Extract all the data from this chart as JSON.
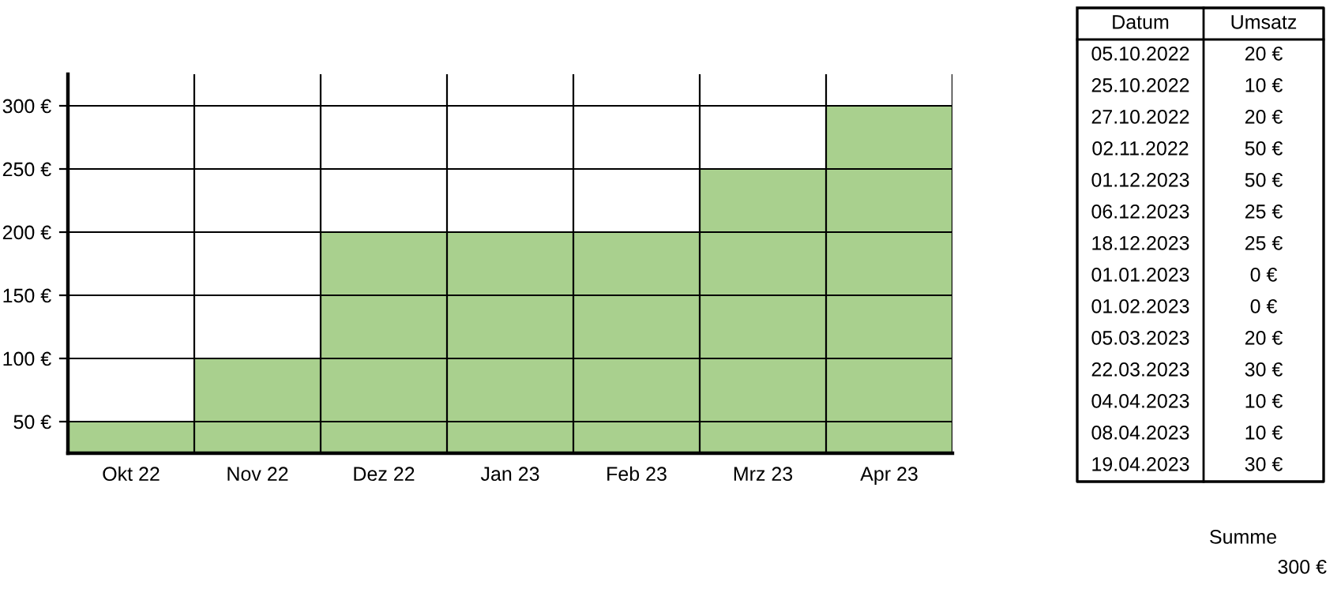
{
  "chart_data": [
    {
      "type": "bar",
      "categories": [
        "Okt 22",
        "Nov 22",
        "Dez 22",
        "Jan 23",
        "Feb 23",
        "Mrz 23",
        "Apr 23"
      ],
      "values": [
        50,
        100,
        200,
        200,
        200,
        250,
        300
      ],
      "color": "#a9d08e",
      "ylim": [
        25,
        325
      ],
      "yticks": [
        {
          "value": 50,
          "label": "50 €"
        },
        {
          "value": 100,
          "label": "100 €"
        },
        {
          "value": 150,
          "label": "150 €"
        },
        {
          "value": 200,
          "label": "200 €"
        },
        {
          "value": 250,
          "label": "250 €"
        },
        {
          "value": 300,
          "label": "300 €"
        }
      ],
      "grid": true
    },
    {
      "type": "other",
      "annotations": [
        "Datum",
        "Umsatz",
        "05.10.2022",
        "20 €",
        "25.10.2022",
        "10 €",
        "27.10.2022",
        "20 €",
        "02.11.2022",
        "50 €",
        "01.12.2023",
        "50 €",
        "06.12.2023",
        "25 €",
        "18.12.2023",
        "25 €",
        "01.01.2023",
        "0 €",
        "01.02.2023",
        "0 €",
        "05.03.2023",
        "20 €",
        "22.03.2023",
        "30 €",
        "04.04.2023",
        "10 €",
        "08.04.2023",
        "10 €",
        "19.04.2023",
        "30 €",
        "Summe",
        "300 €"
      ]
    }
  ]
}
